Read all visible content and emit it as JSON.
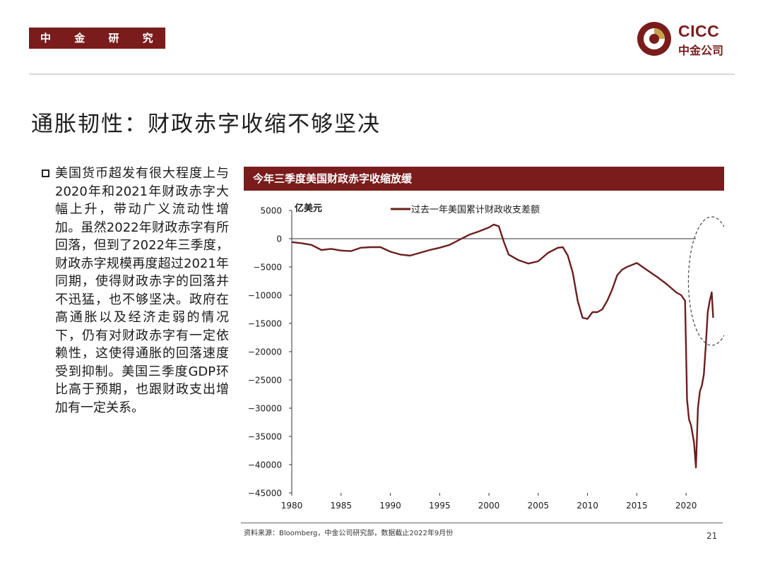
{
  "header": {
    "dept_label": "中 金 研 究 部",
    "logo": {
      "brand_en": "CICC",
      "brand_cn": "中金公司",
      "colors": {
        "primary": "#7a1c1c",
        "accent": "#c8a24a"
      }
    }
  },
  "page_title": "通胀韧性：财政赤字收缩不够坚决",
  "body_text": "美国货币超发有很大程度上与2020年和2021年财政赤字大幅上升，带动广义流动性增加。虽然2022年财政赤字有所回落，但到了2022年三季度，财政赤字规模再度超过2021年同期，使得财政赤字的回落并不迅猛，也不够坚决。政府在高通胀以及经济走弱的情况下，仍有对财政赤字有一定依赖性，这使得通胀的回落速度受到抑制。美国三季度GDP环比高于预期，也跟财政支出增加有一定关系。",
  "chart_header": "今年三季度美国财政赤字收缩放缓",
  "chart_data": {
    "type": "line",
    "title": "今年三季度美国财政赤字收缩放缓",
    "ylabel": "亿美元",
    "xlabel": "",
    "ylim": [
      -45000,
      5000
    ],
    "xlim": [
      1980,
      2023
    ],
    "yticks": [
      5000,
      0,
      -5000,
      -10000,
      -15000,
      -20000,
      -25000,
      -30000,
      -35000,
      -40000,
      -45000
    ],
    "ytick_labels": [
      "5000",
      "0",
      "−5000",
      "−10000",
      "−15000",
      "−20000",
      "−25000",
      "−30000",
      "−35000",
      "−40000",
      "−45000"
    ],
    "xticks": [
      1980,
      1985,
      1990,
      1995,
      2000,
      2005,
      2010,
      2015,
      2020
    ],
    "xtick_labels": [
      "1980",
      "1985",
      "1990",
      "1995",
      "2000",
      "2005",
      "2010",
      "2015",
      "2020"
    ],
    "grid": false,
    "legend_position": "top-center",
    "annotation": "dashed ellipse highlighting 2022 rebound",
    "series": [
      {
        "name": "过去一年美国累计财政收支差额",
        "color": "#6b1f1f",
        "x": [
          1980,
          1981,
          1982,
          1983,
          1984,
          1985,
          1986,
          1987,
          1988,
          1989,
          1990,
          1991,
          1992,
          1993,
          1994,
          1995,
          1996,
          1997,
          1998,
          1999,
          2000,
          2000.5,
          2001,
          2001.5,
          2002,
          2003,
          2004,
          2005,
          2006,
          2007,
          2007.5,
          2008,
          2008.5,
          2009,
          2009.5,
          2010,
          2010.5,
          2011,
          2011.5,
          2012,
          2012.5,
          2013,
          2013.5,
          2014,
          2015,
          2016,
          2017,
          2018,
          2019,
          2019.5,
          2019.9,
          2020.1,
          2020.3,
          2020.5,
          2020.8,
          2021,
          2021.2,
          2021.4,
          2021.6,
          2021.8,
          2022,
          2022.2,
          2022.4,
          2022.6,
          2022.75
        ],
        "values": [
          -600,
          -800,
          -1100,
          -2000,
          -1800,
          -2100,
          -2200,
          -1600,
          -1500,
          -1500,
          -2300,
          -2800,
          -3000,
          -2500,
          -2000,
          -1600,
          -1100,
          -200,
          700,
          1300,
          2000,
          2500,
          2200,
          -500,
          -2800,
          -3800,
          -4400,
          -4000,
          -2500,
          -1600,
          -1500,
          -3000,
          -6000,
          -11000,
          -14000,
          -14200,
          -13000,
          -13000,
          -12500,
          -11000,
          -9000,
          -6500,
          -5500,
          -5000,
          -4300,
          -5500,
          -6700,
          -8000,
          -9500,
          -10000,
          -11000,
          -28500,
          -32000,
          -33000,
          -36000,
          -40500,
          -30000,
          -27000,
          -26000,
          -24000,
          -19000,
          -13000,
          -11000,
          -9500,
          -14000
        ]
      }
    ]
  },
  "source_note": "资料来源：Bloomberg，中金公司研究部，数据截止2022年9月份",
  "page_number": "21"
}
